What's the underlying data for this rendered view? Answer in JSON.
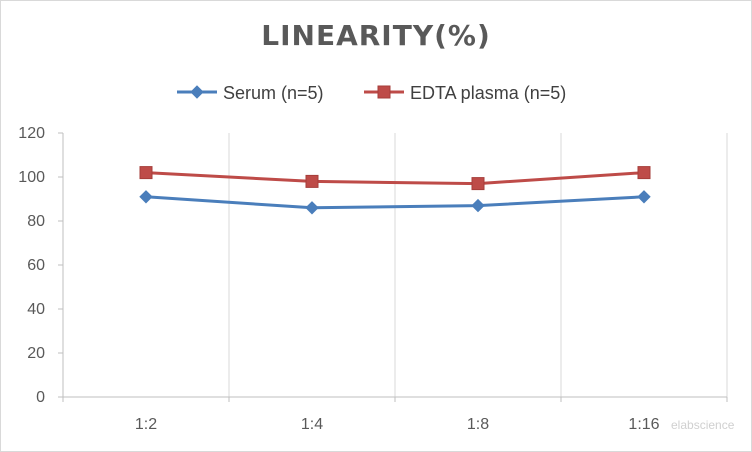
{
  "chart_data": {
    "type": "line",
    "title": "LINEARITY(%)",
    "xlabel": "",
    "ylabel": "",
    "categories": [
      "1:2",
      "1:4",
      "1:8",
      "1:16"
    ],
    "ylim": [
      0,
      120
    ],
    "yticks": [
      0,
      20,
      40,
      60,
      80,
      100,
      120
    ],
    "grid": "vertical",
    "legend_position": "top",
    "series": [
      {
        "name": "Serum (n=5)",
        "values": [
          91,
          86,
          87,
          91
        ],
        "color": "#4a7ebb",
        "marker": "diamond"
      },
      {
        "name": "EDTA plasma (n=5)",
        "values": [
          102,
          98,
          97,
          102
        ],
        "color": "#be4b48",
        "marker": "square"
      }
    ]
  },
  "watermark": "elabscience"
}
